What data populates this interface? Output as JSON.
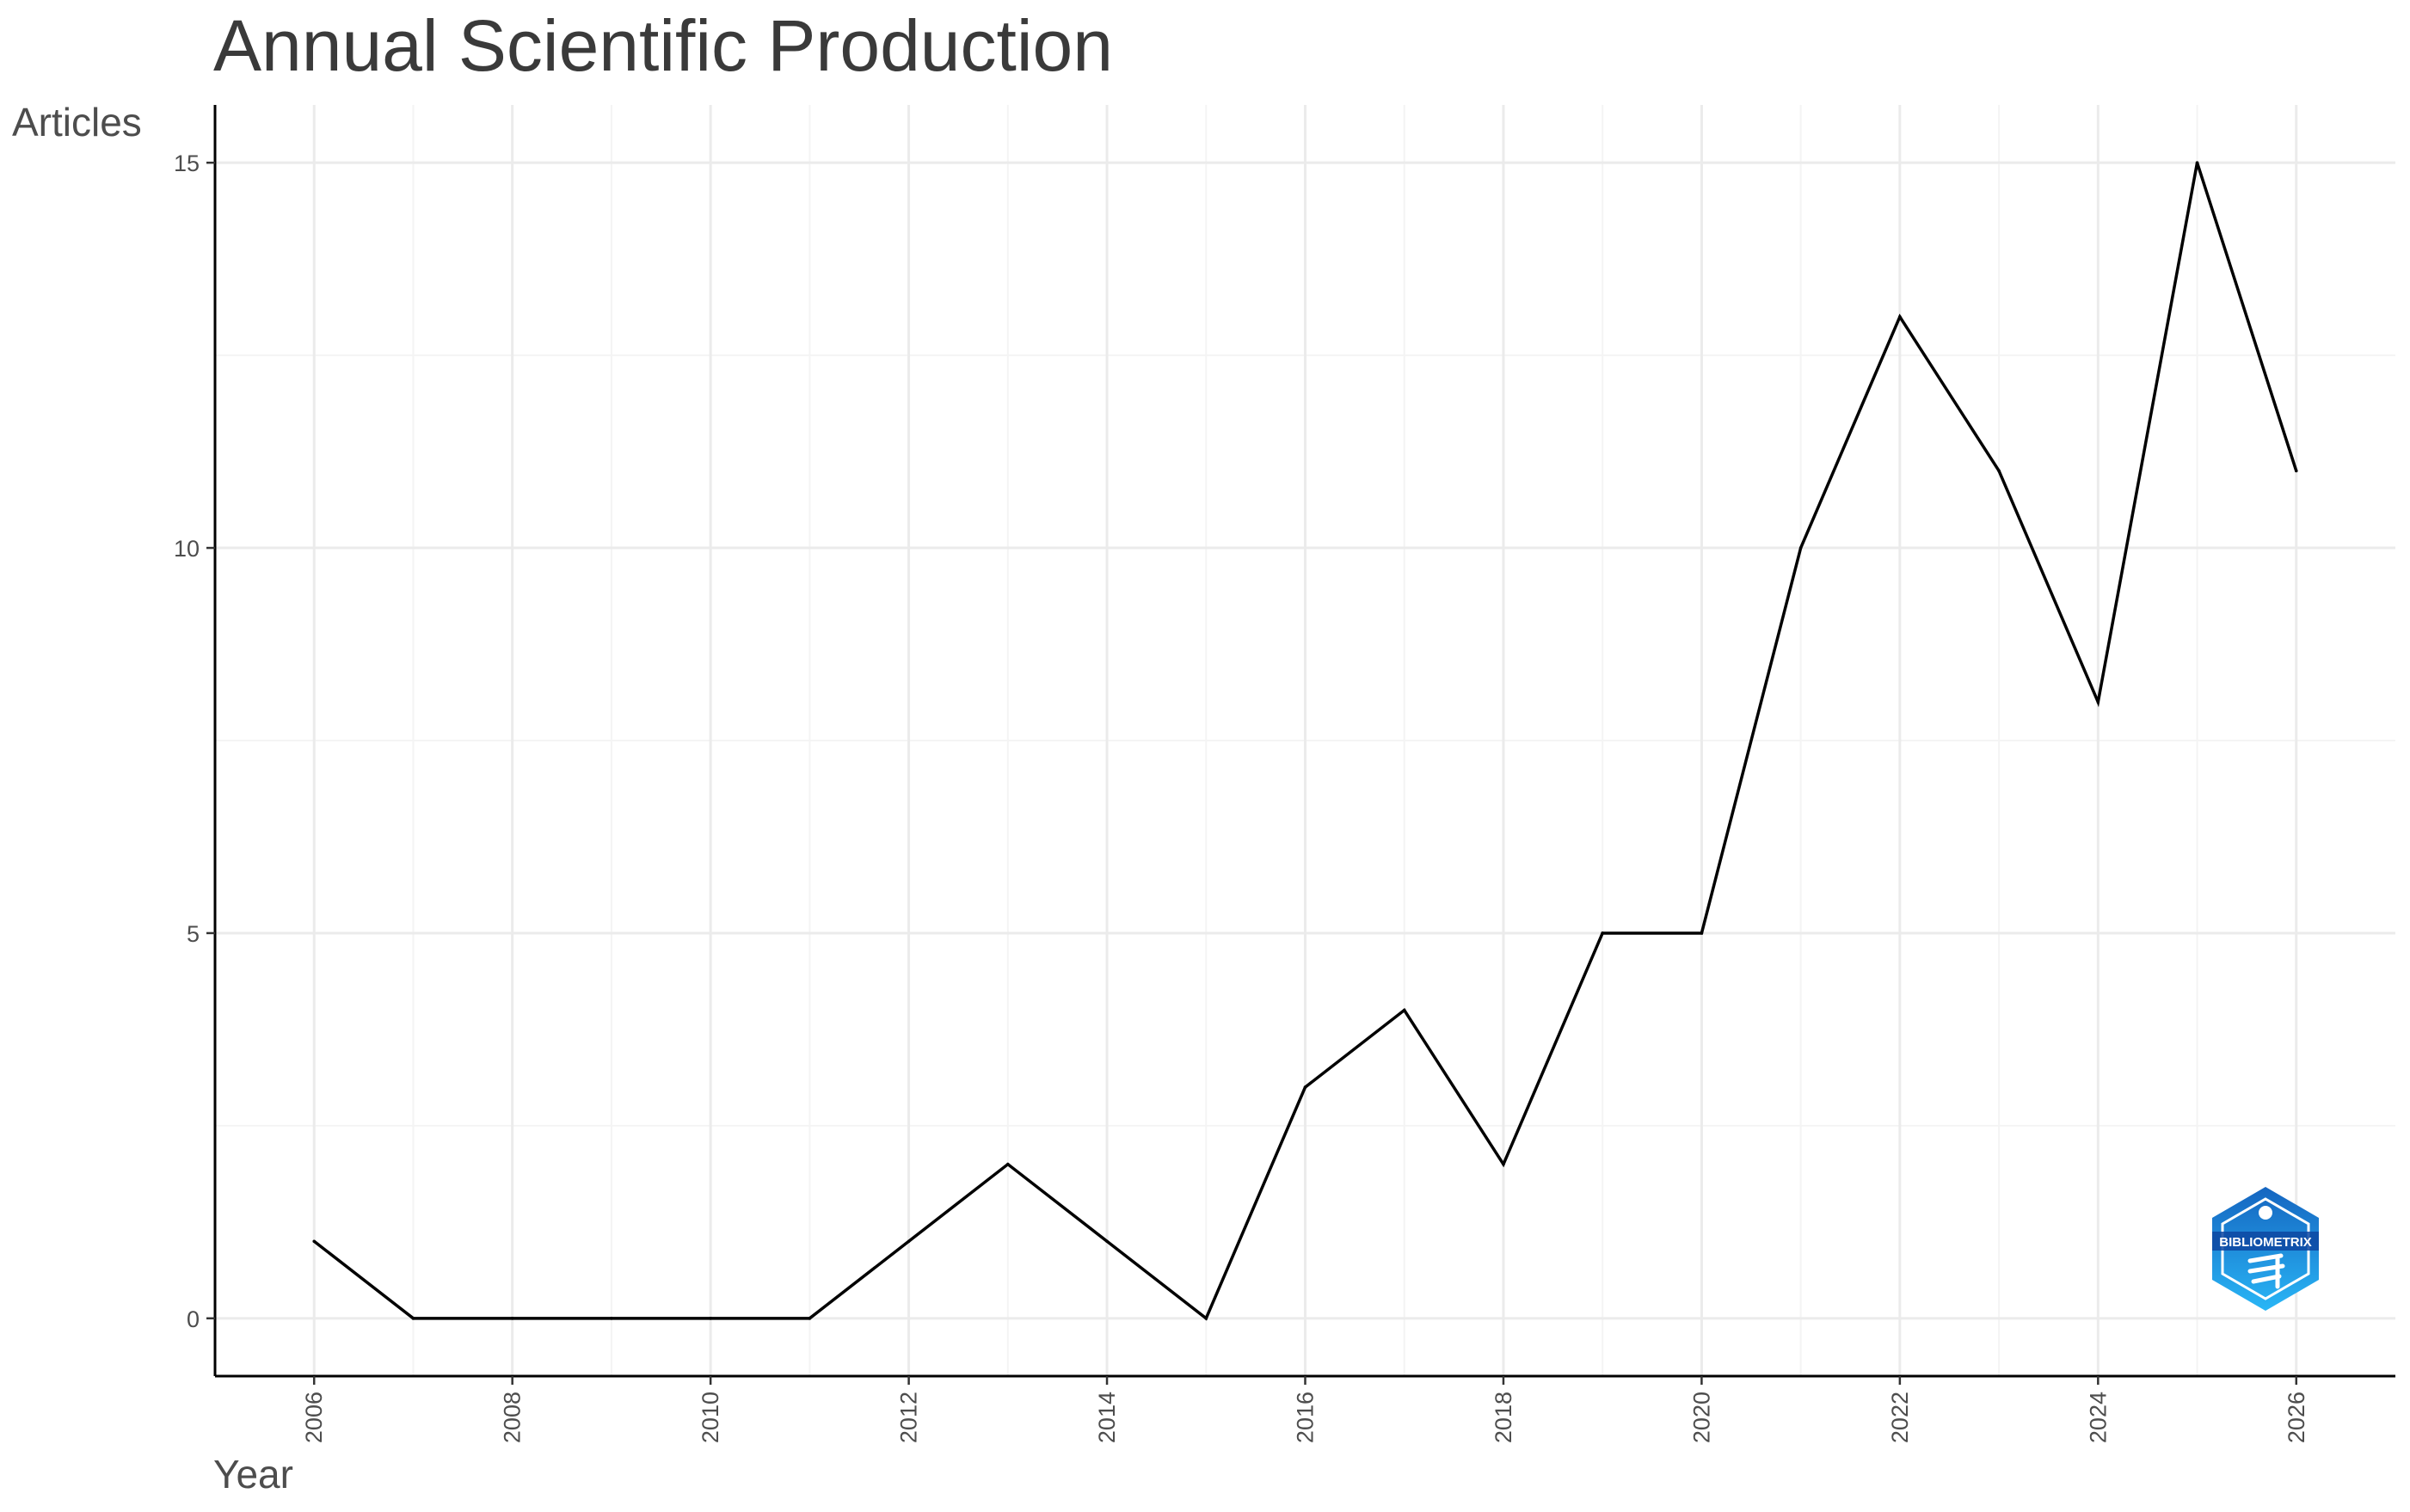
{
  "chart_data": {
    "type": "line",
    "title": "Annual Scientific Production",
    "xlabel": "Year",
    "ylabel": "Articles",
    "x": [
      2006,
      2007,
      2008,
      2009,
      2010,
      2011,
      2012,
      2013,
      2014,
      2015,
      2016,
      2017,
      2018,
      2019,
      2020,
      2021,
      2022,
      2023,
      2024,
      2025,
      2026
    ],
    "series": [
      {
        "values": [
          1,
          0,
          0,
          0,
          0,
          0,
          1,
          2,
          1,
          0,
          3,
          4,
          2,
          5,
          5,
          10,
          13,
          11,
          8,
          15,
          11
        ]
      }
    ],
    "xlim": [
      2005,
      2027
    ],
    "ylim": [
      -0.75,
      15.75
    ],
    "x_ticks": [
      "2006",
      "2008",
      "2010",
      "2012",
      "2014",
      "2016",
      "2018",
      "2020",
      "2022",
      "2024",
      "2026"
    ],
    "y_ticks": [
      "0",
      "5",
      "10",
      "15"
    ],
    "grid": true,
    "legend": "none",
    "line_color": "#000000"
  },
  "logo": {
    "text": "BIBLIOMETRIX",
    "colors": [
      "#1565c0",
      "#29b6f6"
    ]
  }
}
